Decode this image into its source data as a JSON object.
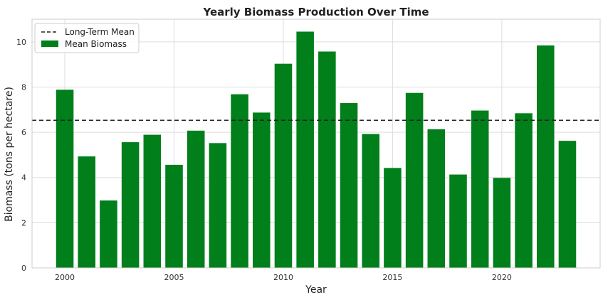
{
  "chart_data": {
    "type": "bar",
    "title": "Yearly Biomass Production Over Time",
    "xlabel": "Year",
    "ylabel": "Biomass (tons per hectare)",
    "x": [
      2000,
      2001,
      2002,
      2003,
      2004,
      2005,
      2006,
      2007,
      2008,
      2009,
      2010,
      2011,
      2012,
      2013,
      2014,
      2015,
      2016,
      2017,
      2018,
      2019,
      2020,
      2021,
      2022,
      2023
    ],
    "series": [
      {
        "name": "Mean Biomass",
        "color": "#007f1a",
        "values": [
          7.88,
          4.93,
          2.98,
          5.56,
          5.89,
          4.56,
          6.07,
          5.52,
          7.68,
          6.87,
          9.03,
          10.45,
          9.57,
          7.29,
          5.92,
          4.42,
          7.74,
          6.13,
          4.13,
          6.96,
          3.98,
          6.84,
          9.84,
          5.62
        ]
      }
    ],
    "reference_lines": [
      {
        "name": "Long-Term Mean",
        "value": 6.53,
        "style": "dashed",
        "color": "#222222"
      }
    ],
    "xticks": [
      2000,
      2005,
      2010,
      2015,
      2020
    ],
    "yticks": [
      0,
      2,
      4,
      6,
      8,
      10
    ],
    "xlim": [
      1998.5,
      2024.5
    ],
    "ylim": [
      0,
      11
    ],
    "grid": true,
    "legend_position": "top-left"
  }
}
